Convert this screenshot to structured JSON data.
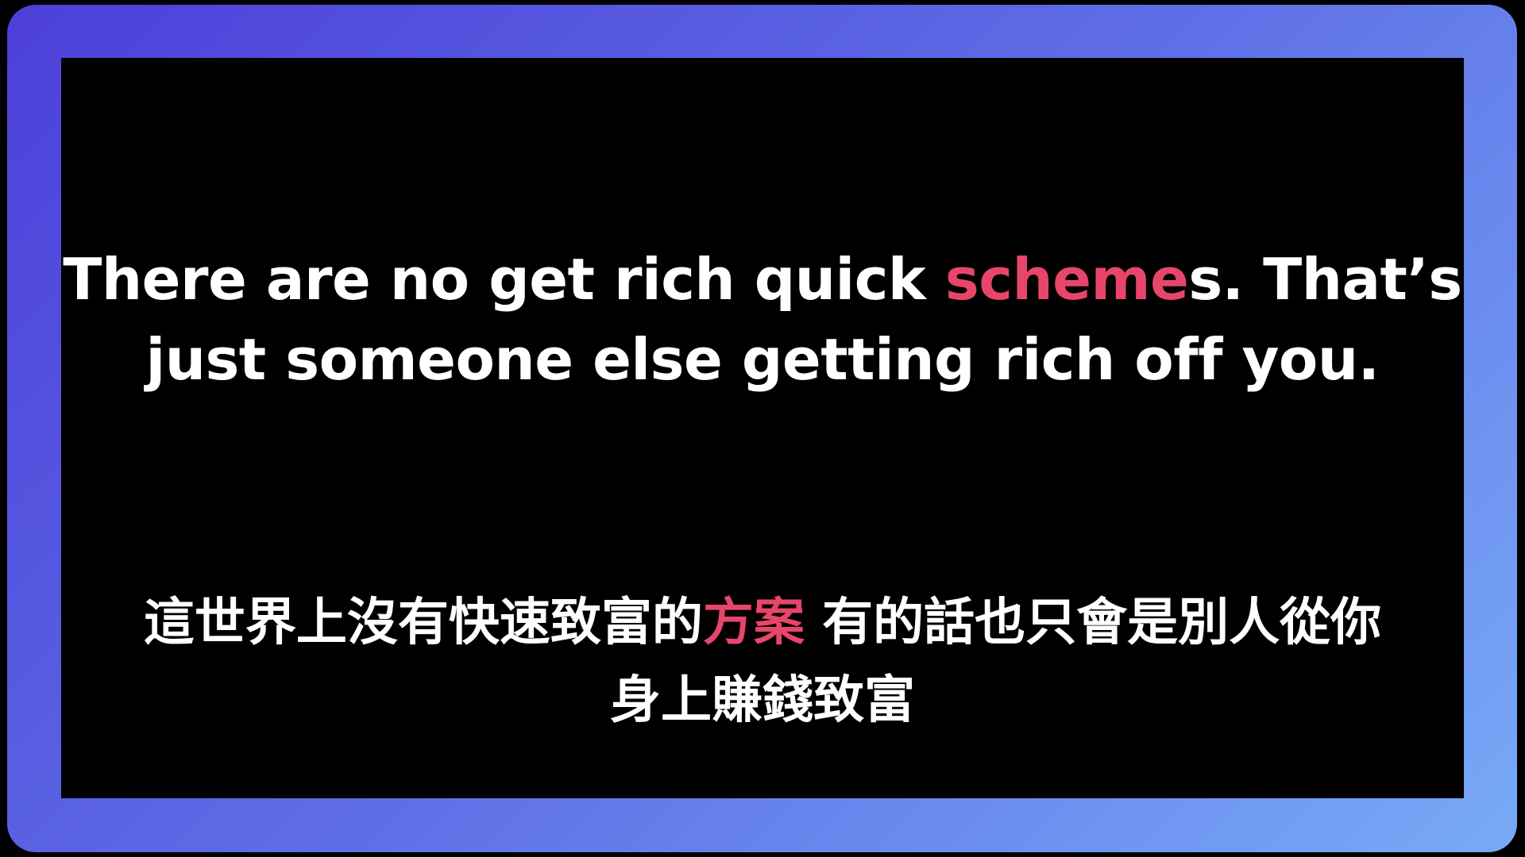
{
  "slide": {
    "english": {
      "line1_before": "There are no get rich quick ",
      "line1_highlight": "scheme",
      "line1_after": "s. That’s",
      "line2": "just someone else getting rich off you."
    },
    "chinese": {
      "line1_before": "這世界上沒有快速致富的",
      "line1_highlight": "方案",
      "line1_after": " 有的話也只會是別人從你",
      "line2": "身上賺錢致富"
    }
  },
  "colors": {
    "highlight": "#e8456b",
    "text": "#ffffff",
    "background": "#000000",
    "frame_gradient_start": "#4c3fd9",
    "frame_gradient_end": "#78aaf7"
  }
}
